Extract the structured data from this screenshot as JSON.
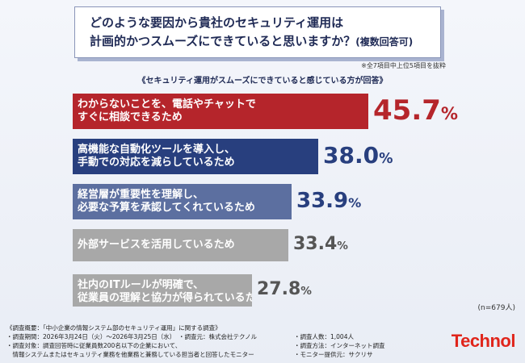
{
  "question": {
    "line1": "どのような要因から貴社のセキュリティ運用は",
    "line2": "計画的かつスムーズにできていると思いますか？",
    "line2_suffix": "(複数回答可)"
  },
  "note": "※全7項目中上位5項目を抜粋",
  "subtitle": "《セキュリティ運用がスムーズにできていると感じている方が回答》",
  "sample_size": "(n=679人)",
  "chart_data": {
    "type": "bar",
    "orientation": "horizontal",
    "categories": [
      [
        "わからないことを、電話やチャットで",
        "すぐに相談できるため"
      ],
      [
        "高機能な自動化ツールを導入し、",
        "手動での対応を減らしているため"
      ],
      [
        "経営層が重要性を理解し、",
        "必要な予算を承認してくれているため"
      ],
      [
        "外部サービスを活用しているため"
      ],
      [
        "社内のITルールが明確で、",
        "従業員の理解と協力が得られているため"
      ]
    ],
    "values": [
      45.7,
      38.0,
      33.9,
      33.4,
      27.8
    ],
    "value_labels": [
      {
        "num": "45.7",
        "pct": "%"
      },
      {
        "num": "38.0",
        "pct": "%"
      },
      {
        "num": "33.9",
        "pct": "%"
      },
      {
        "num": "33.4",
        "pct": "%"
      },
      {
        "num": "27.8",
        "pct": "%"
      }
    ],
    "colors": [
      "#b5252b",
      "#283f7e",
      "#5c6fa0",
      "#a8a8a8",
      "#a8a8a8"
    ],
    "label_colors": [
      "#b5252b",
      "#283f7e",
      "#283f7e",
      "#555555",
      "#555555"
    ],
    "xlim": [
      0,
      50
    ]
  },
  "footer": {
    "rows": [
      {
        "left": "《調査概要：「中小企業の情報システム部のセキュリティ運用」に関する調査》",
        "right": ""
      },
      {
        "left": "・調査期間：2026年3月24日（火）～2026年3月25日（水）　・調査元：株式会社テクノル",
        "right": "・調査人数：1,004人"
      },
      {
        "left": "・調査対象：調査回答時に従業員数200名以下の企業において、",
        "right": "・調査方法：インターネット調査"
      },
      {
        "left": "　情報システムまたはセキュリティ業務を他業務と兼務している担当者と回答したモニター",
        "right": "・モニター提供元：サクリサ"
      }
    ]
  },
  "logo": "Technol"
}
